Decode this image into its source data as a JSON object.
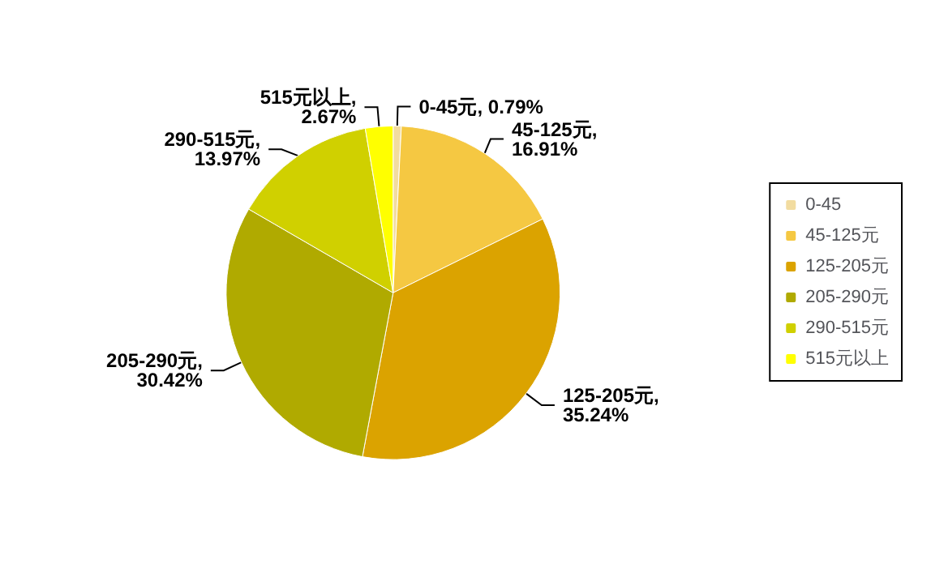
{
  "chart_data": {
    "type": "pie",
    "categories": [
      "0-45",
      "45-125元",
      "125-205元",
      "205-290元",
      "290-515元",
      "515元以上"
    ],
    "values": [
      0.79,
      16.91,
      35.24,
      30.42,
      13.97,
      2.67
    ],
    "colors": [
      "#f2dca0",
      "#f5c842",
      "#dba300",
      "#b0aa00",
      "#d0d000",
      "#ffff00"
    ],
    "value_labels": [
      "0-45元, 0.79%",
      "45-125元,\n16.91%",
      "125-205元,\n35.24%",
      "205-290元,\n30.42%",
      "290-515元,\n13.97%",
      "515元以上,\n2.67%"
    ],
    "legend": "right"
  }
}
